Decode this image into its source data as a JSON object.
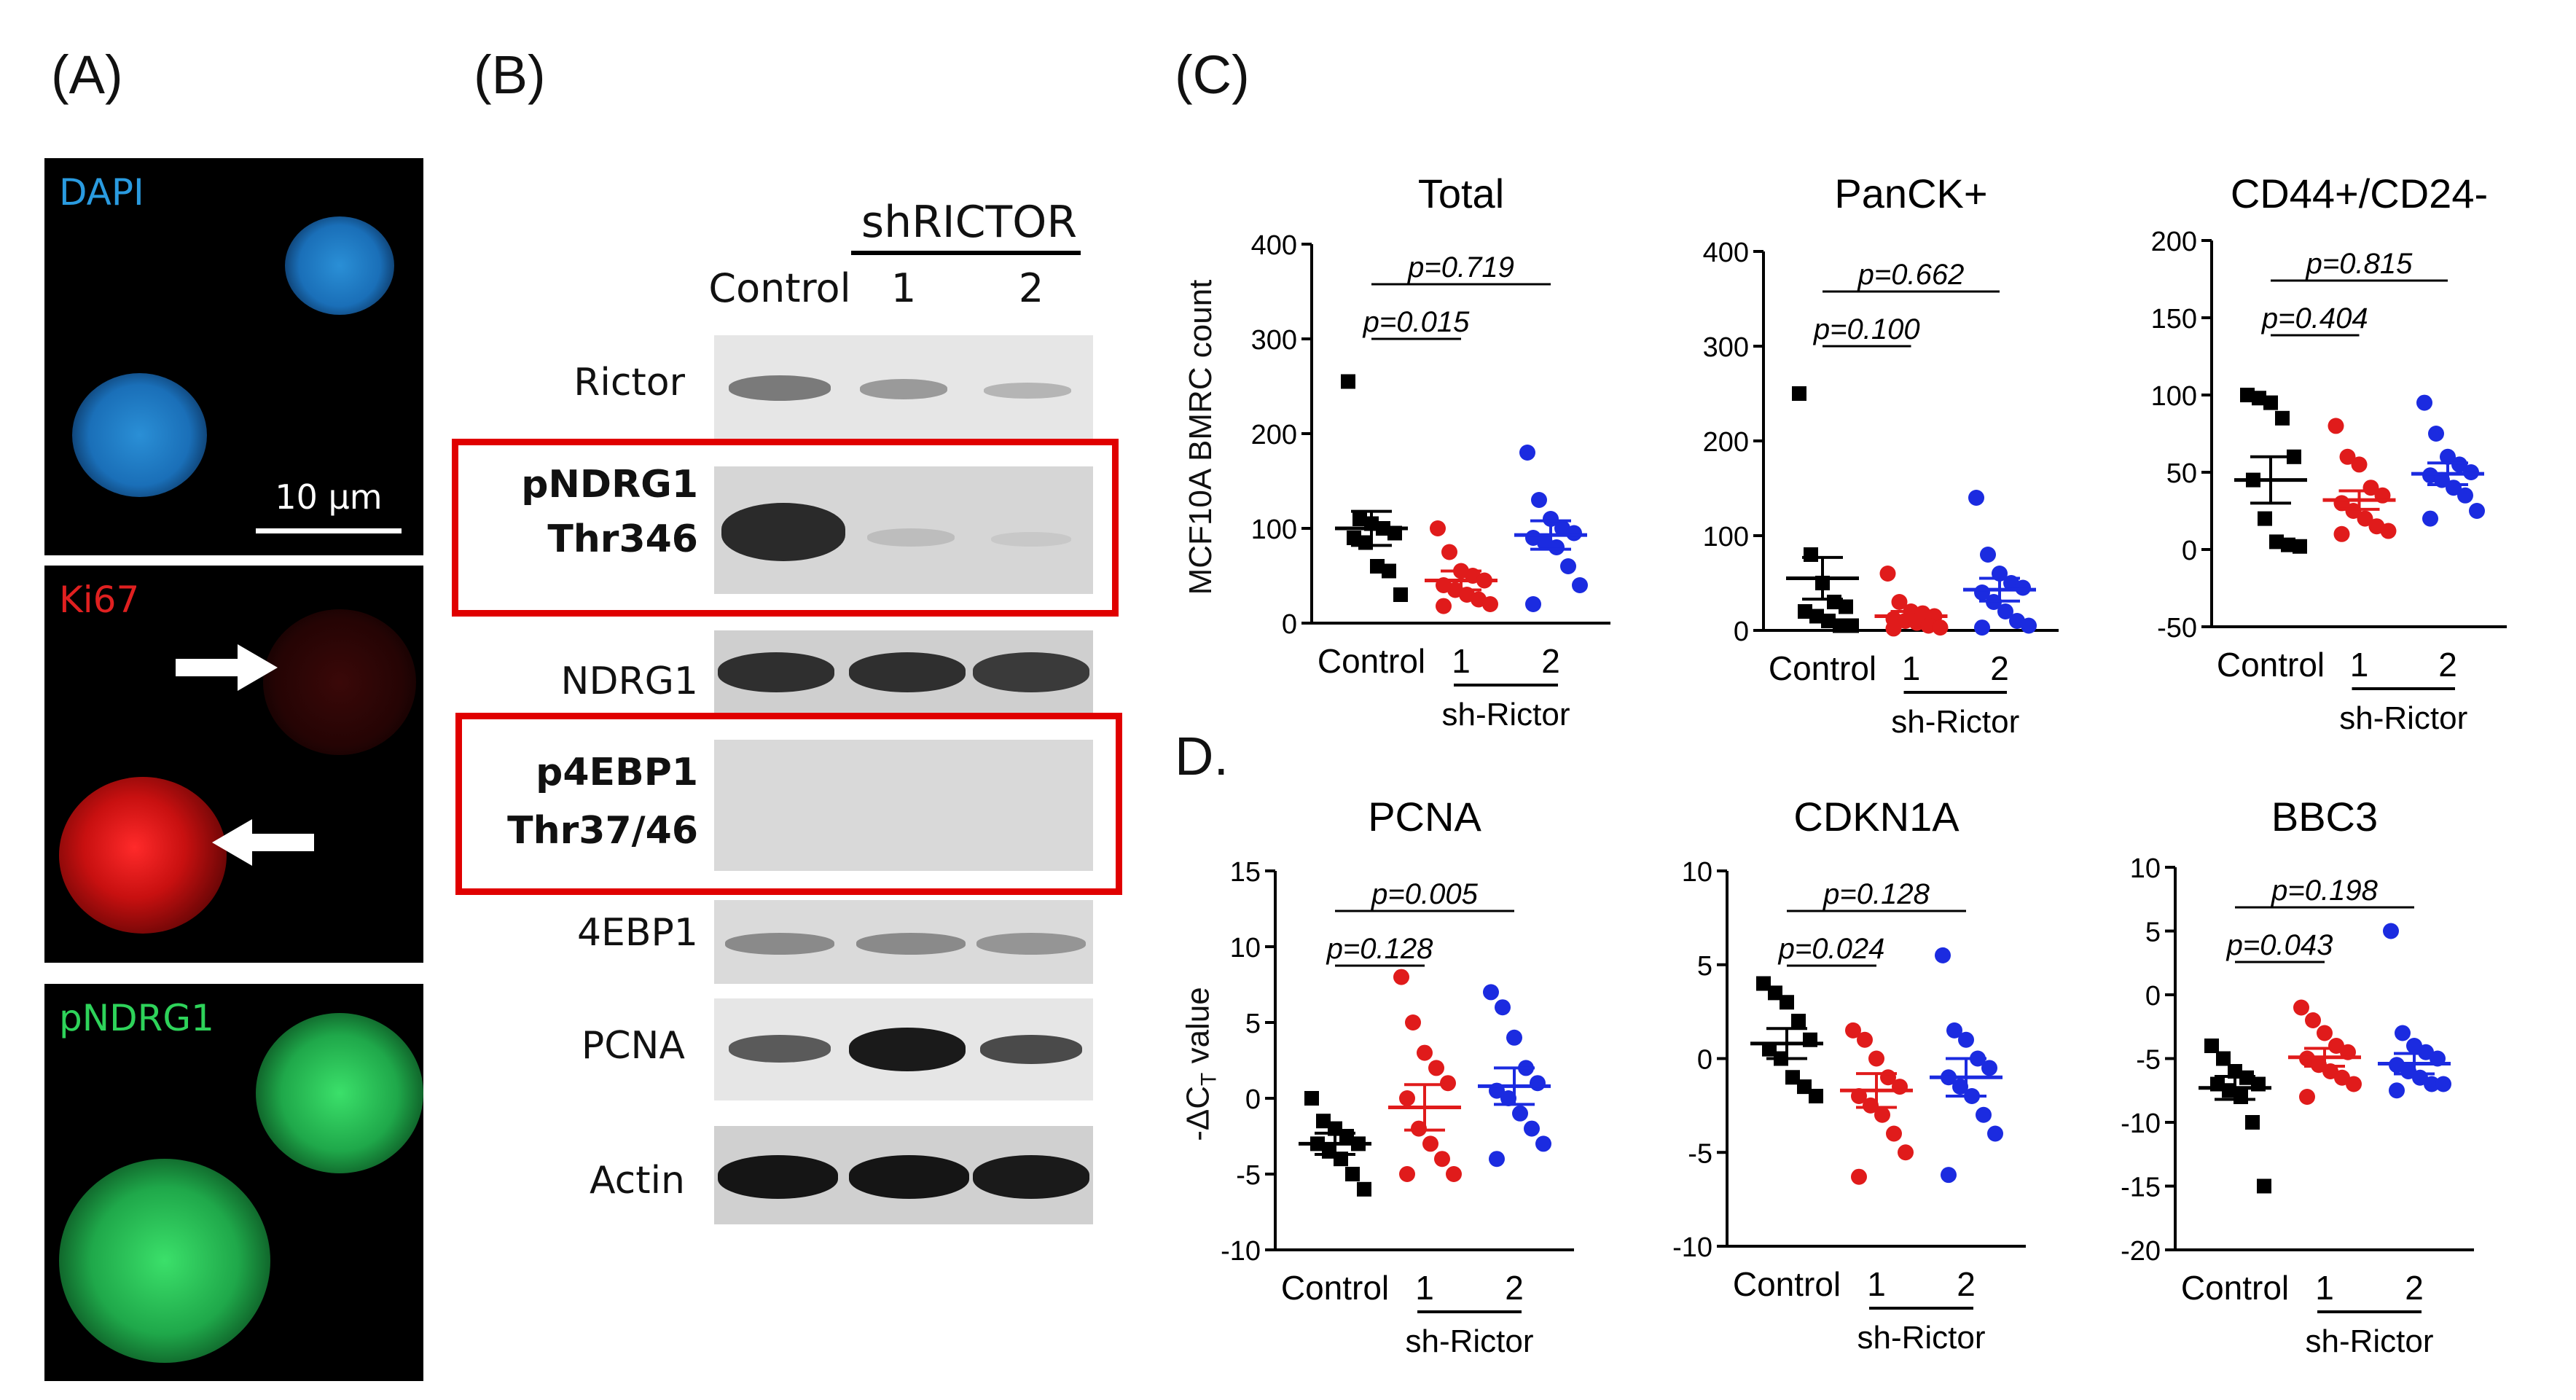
{
  "labels": {
    "A": "(A)",
    "B": "(B)",
    "C": "(C)",
    "D": "D."
  },
  "panelA": {
    "stains": [
      {
        "name": "DAPI",
        "color": "#2a9be0"
      },
      {
        "name": "Ki67",
        "color": "#e02020"
      },
      {
        "name": "pNDRG1",
        "color": "#2ed35a"
      }
    ],
    "scale_bar": "10 μm"
  },
  "panelB": {
    "group_header": "shRICTOR",
    "lanes": [
      "Control",
      "1",
      "2"
    ],
    "rows": [
      {
        "label": "Rictor",
        "bold": false
      },
      {
        "label": "pNDRG1",
        "label2": "Thr346",
        "bold": true,
        "boxed": true
      },
      {
        "label": "NDRG1",
        "bold": false
      },
      {
        "label": "p4EBP1",
        "label2": "Thr37/46",
        "bold": true,
        "boxed": true
      },
      {
        "label": "4EBP1",
        "bold": false
      },
      {
        "label": "PCNA",
        "bold": false
      },
      {
        "label": "Actin",
        "bold": false
      }
    ]
  },
  "panelC": {
    "ylabel": "MCF10A BMRC count",
    "group_label": "sh-Rictor"
  },
  "panelD": {
    "ylabel": "-ΔC_T value"
  },
  "chart_data": [
    {
      "type": "scatter",
      "title": "Total",
      "ylim": [
        0,
        400
      ],
      "yticks": [
        0,
        100,
        200,
        300,
        400
      ],
      "categories": [
        "Control",
        "1",
        "2"
      ],
      "group_label": "sh-Rictor",
      "comparisons": [
        "p=0.015",
        "p=0.719"
      ],
      "series": [
        {
          "name": "Control",
          "color": "#000000",
          "marker": "square",
          "mean": 100,
          "sem": 18,
          "values": [
            255,
            110,
            105,
            100,
            95,
            90,
            85,
            60,
            55,
            30
          ]
        },
        {
          "name": "1",
          "color": "#e01b1b",
          "marker": "circle",
          "mean": 45,
          "sem": 10,
          "values": [
            100,
            75,
            55,
            50,
            45,
            40,
            35,
            30,
            25,
            20,
            18
          ]
        },
        {
          "name": "2",
          "color": "#1b2be0",
          "marker": "circle",
          "mean": 93,
          "sem": 15,
          "values": [
            180,
            130,
            110,
            100,
            95,
            90,
            85,
            80,
            60,
            40,
            20
          ]
        }
      ]
    },
    {
      "type": "scatter",
      "title": "PanCK+",
      "ylim": [
        0,
        400
      ],
      "yticks": [
        0,
        100,
        200,
        300,
        400
      ],
      "categories": [
        "Control",
        "1",
        "2"
      ],
      "group_label": "sh-Rictor",
      "comparisons": [
        "p=0.100",
        "p=0.662"
      ],
      "series": [
        {
          "name": "Control",
          "color": "#000000",
          "marker": "square",
          "mean": 55,
          "sem": 22,
          "values": [
            250,
            80,
            50,
            30,
            25,
            20,
            15,
            10,
            5,
            5
          ]
        },
        {
          "name": "1",
          "color": "#e01b1b",
          "marker": "circle",
          "mean": 15,
          "sem": 5,
          "values": [
            60,
            30,
            20,
            18,
            15,
            12,
            10,
            8,
            5,
            3,
            2
          ]
        },
        {
          "name": "2",
          "color": "#1b2be0",
          "marker": "circle",
          "mean": 43,
          "sem": 12,
          "values": [
            140,
            80,
            60,
            50,
            45,
            40,
            30,
            20,
            10,
            5,
            3
          ]
        }
      ]
    },
    {
      "type": "scatter",
      "title": "CD44+/CD24-",
      "ylim": [
        -50,
        200
      ],
      "yticks": [
        -50,
        0,
        50,
        100,
        150,
        200
      ],
      "categories": [
        "Control",
        "1",
        "2"
      ],
      "group_label": "sh-Rictor",
      "comparisons": [
        "p=0.404",
        "p=0.815"
      ],
      "series": [
        {
          "name": "Control",
          "color": "#000000",
          "marker": "square",
          "mean": 45,
          "sem": 15,
          "values": [
            100,
            98,
            95,
            85,
            60,
            45,
            20,
            5,
            3,
            2
          ]
        },
        {
          "name": "1",
          "color": "#e01b1b",
          "marker": "circle",
          "mean": 32,
          "sem": 6,
          "values": [
            80,
            60,
            55,
            40,
            35,
            30,
            25,
            20,
            15,
            12,
            10
          ]
        },
        {
          "name": "2",
          "color": "#1b2be0",
          "marker": "circle",
          "mean": 49,
          "sem": 7,
          "values": [
            95,
            75,
            60,
            55,
            50,
            48,
            45,
            40,
            35,
            25,
            20
          ]
        }
      ]
    },
    {
      "type": "scatter",
      "title": "PCNA",
      "ylim": [
        -10,
        15
      ],
      "yticks": [
        -10,
        -5,
        0,
        5,
        10,
        15
      ],
      "categories": [
        "Control",
        "1",
        "2"
      ],
      "group_label": "sh-Rictor",
      "comparisons": [
        "p=0.128",
        "p=0.005"
      ],
      "series": [
        {
          "name": "Control",
          "color": "#000000",
          "marker": "square",
          "mean": -3,
          "sem": 0.7,
          "values": [
            0,
            -1.5,
            -2,
            -2.5,
            -3,
            -3,
            -3.5,
            -4,
            -5,
            -6
          ]
        },
        {
          "name": "1",
          "color": "#e01b1b",
          "marker": "circle",
          "mean": -0.6,
          "sem": 1.5,
          "values": [
            8,
            5,
            3,
            2,
            1,
            0,
            -2,
            -3,
            -4,
            -5,
            -5
          ]
        },
        {
          "name": "2",
          "color": "#1b2be0",
          "marker": "circle",
          "mean": 0.8,
          "sem": 1.2,
          "values": [
            7,
            6,
            4,
            2,
            1,
            0.5,
            0,
            -1,
            -2,
            -3,
            -4
          ]
        }
      ]
    },
    {
      "type": "scatter",
      "title": "CDKN1A",
      "ylim": [
        -10,
        10
      ],
      "yticks": [
        -10,
        -5,
        0,
        5,
        10
      ],
      "categories": [
        "Control",
        "1",
        "2"
      ],
      "group_label": "sh-Rictor",
      "comparisons": [
        "p=0.024",
        "p=0.128"
      ],
      "series": [
        {
          "name": "Control",
          "color": "#000000",
          "marker": "square",
          "mean": 0.8,
          "sem": 0.8,
          "values": [
            4,
            3.5,
            3,
            2,
            1,
            0.5,
            0,
            -1,
            -1.5,
            -2
          ]
        },
        {
          "name": "1",
          "color": "#e01b1b",
          "marker": "circle",
          "mean": -1.7,
          "sem": 0.9,
          "values": [
            1.5,
            1,
            0,
            -1,
            -1.5,
            -2,
            -2.5,
            -3,
            -4,
            -5,
            -6.3
          ]
        },
        {
          "name": "2",
          "color": "#1b2be0",
          "marker": "circle",
          "mean": -1.0,
          "sem": 1.0,
          "values": [
            5.5,
            1.5,
            1,
            0,
            -0.5,
            -1,
            -1.5,
            -2,
            -3,
            -4,
            -6.2
          ]
        }
      ]
    },
    {
      "type": "scatter",
      "title": "BBC3",
      "ylim": [
        -20,
        10
      ],
      "yticks": [
        -20,
        -15,
        -10,
        -5,
        0,
        5,
        10
      ],
      "categories": [
        "Control",
        "1",
        "2"
      ],
      "group_label": "sh-Rictor",
      "comparisons": [
        "p=0.043",
        "p=0.198"
      ],
      "series": [
        {
          "name": "Control",
          "color": "#000000",
          "marker": "square",
          "mean": -7.3,
          "sem": 0.9,
          "values": [
            -4,
            -5,
            -6,
            -6.5,
            -7,
            -7,
            -7.5,
            -8,
            -10,
            -15
          ]
        },
        {
          "name": "1",
          "color": "#e01b1b",
          "marker": "circle",
          "mean": -4.9,
          "sem": 0.7,
          "values": [
            -1,
            -2,
            -3,
            -4,
            -4.5,
            -5,
            -5.5,
            -6,
            -6.5,
            -7,
            -8
          ]
        },
        {
          "name": "2",
          "color": "#1b2be0",
          "marker": "circle",
          "mean": -5.4,
          "sem": 0.8,
          "values": [
            5,
            -3,
            -4,
            -4.5,
            -5,
            -5.5,
            -6,
            -6.5,
            -7,
            -7,
            -7.5
          ]
        }
      ]
    }
  ]
}
